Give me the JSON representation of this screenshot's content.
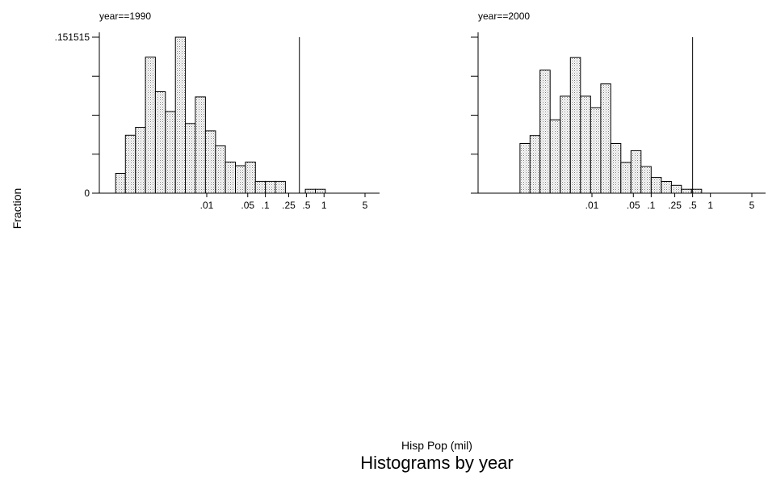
{
  "chart_data": {
    "type": "bar",
    "caption": "Histograms by year",
    "xlabel": "Hisp Pop (mil)",
    "ylabel": "Fraction",
    "x_scale": "log",
    "ylim": [
      0,
      0.151515
    ],
    "y_tick_labels": [
      ".151515",
      "0"
    ],
    "x_ticks": [
      {
        "label": ".01",
        "value": 0.01
      },
      {
        "label": ".05",
        "value": 0.05
      },
      {
        "label": ".1",
        "value": 0.1
      },
      {
        "label": ".25",
        "value": 0.25
      },
      {
        "label": ".5",
        "value": 0.5
      },
      {
        "label": "1",
        "value": 1
      },
      {
        "label": "5",
        "value": 5
      }
    ],
    "panels": [
      {
        "title": "year==1990",
        "reference_line_x": 0.38,
        "bins": [
          {
            "x0": 0.00028,
            "x1": 0.00041,
            "y": 0.0192
          },
          {
            "x0": 0.00041,
            "x1": 0.00061,
            "y": 0.0563
          },
          {
            "x0": 0.00061,
            "x1": 0.0009,
            "y": 0.064
          },
          {
            "x0": 0.0009,
            "x1": 0.00133,
            "y": 0.1321
          },
          {
            "x0": 0.00133,
            "x1": 0.00197,
            "y": 0.0985
          },
          {
            "x0": 0.00197,
            "x1": 0.00292,
            "y": 0.0793
          },
          {
            "x0": 0.00292,
            "x1": 0.00432,
            "y": 0.1515
          },
          {
            "x0": 0.00432,
            "x1": 0.0064,
            "y": 0.0677
          },
          {
            "x0": 0.0064,
            "x1": 0.0095,
            "y": 0.0935
          },
          {
            "x0": 0.0095,
            "x1": 0.0141,
            "y": 0.0605
          },
          {
            "x0": 0.0141,
            "x1": 0.0208,
            "y": 0.046
          },
          {
            "x0": 0.0208,
            "x1": 0.0308,
            "y": 0.0302
          },
          {
            "x0": 0.0308,
            "x1": 0.0456,
            "y": 0.0267
          },
          {
            "x0": 0.0456,
            "x1": 0.0675,
            "y": 0.0302
          },
          {
            "x0": 0.0675,
            "x1": 0.1,
            "y": 0.0115
          },
          {
            "x0": 0.1,
            "x1": 0.148,
            "y": 0.0115
          },
          {
            "x0": 0.148,
            "x1": 0.219,
            "y": 0.0115
          },
          {
            "x0": 0.219,
            "x1": 0.324,
            "y": 0.0
          },
          {
            "x0": 0.324,
            "x1": 0.48,
            "y": 0.0
          },
          {
            "x0": 0.48,
            "x1": 0.711,
            "y": 0.0038
          },
          {
            "x0": 0.711,
            "x1": 1.05,
            "y": 0.0038
          }
        ]
      },
      {
        "title": "year==2000",
        "reference_line_x": 0.5,
        "bins": [
          {
            "x0": 0.00061,
            "x1": 0.0009,
            "y": 0.0483
          },
          {
            "x0": 0.0009,
            "x1": 0.00133,
            "y": 0.056
          },
          {
            "x0": 0.00133,
            "x1": 0.00197,
            "y": 0.1195
          },
          {
            "x0": 0.00197,
            "x1": 0.00292,
            "y": 0.0713
          },
          {
            "x0": 0.00292,
            "x1": 0.00432,
            "y": 0.0942
          },
          {
            "x0": 0.00432,
            "x1": 0.0064,
            "y": 0.1317
          },
          {
            "x0": 0.0064,
            "x1": 0.0095,
            "y": 0.0942
          },
          {
            "x0": 0.0095,
            "x1": 0.0141,
            "y": 0.083
          },
          {
            "x0": 0.0141,
            "x1": 0.0208,
            "y": 0.1061
          },
          {
            "x0": 0.0208,
            "x1": 0.0308,
            "y": 0.0483
          },
          {
            "x0": 0.0308,
            "x1": 0.0456,
            "y": 0.0298
          },
          {
            "x0": 0.0456,
            "x1": 0.0675,
            "y": 0.0413
          },
          {
            "x0": 0.0675,
            "x1": 0.1,
            "y": 0.0259
          },
          {
            "x0": 0.1,
            "x1": 0.148,
            "y": 0.0152
          },
          {
            "x0": 0.148,
            "x1": 0.219,
            "y": 0.0114
          },
          {
            "x0": 0.219,
            "x1": 0.324,
            "y": 0.0076
          },
          {
            "x0": 0.324,
            "x1": 0.48,
            "y": 0.0038
          },
          {
            "x0": 0.48,
            "x1": 0.711,
            "y": 0.0038
          }
        ]
      }
    ]
  }
}
